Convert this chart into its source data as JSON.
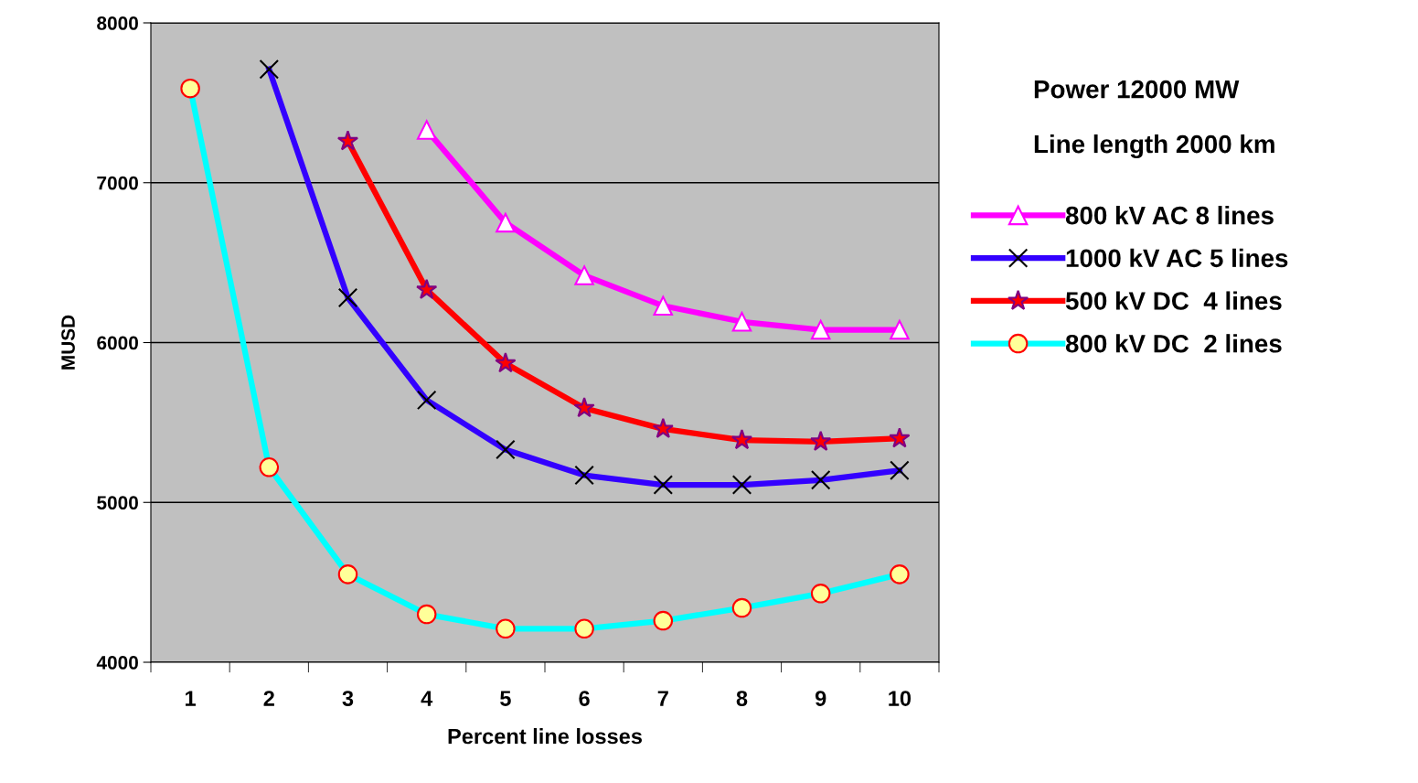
{
  "chart_data": {
    "type": "line",
    "xlabel": "Percent line losses",
    "ylabel": "MUSD",
    "categories": [
      "1",
      "2",
      "3",
      "4",
      "5",
      "6",
      "7",
      "8",
      "9",
      "10"
    ],
    "series": [
      {
        "name": "800 kV AC 8 lines",
        "color": "#ff00ff",
        "marker": "triangle",
        "values": [
          null,
          null,
          null,
          7330,
          6750,
          6420,
          6230,
          6130,
          6080,
          6080
        ]
      },
      {
        "name": "1000 kV AC 5 lines",
        "color": "#3300ff",
        "marker": "cross",
        "values": [
          null,
          7710,
          6280,
          5640,
          5330,
          5170,
          5110,
          5110,
          5140,
          5200
        ]
      },
      {
        "name": "500 kV DC  4 lines",
        "color": "#ff0000",
        "marker": "star",
        "values": [
          null,
          null,
          7260,
          6330,
          5870,
          5590,
          5460,
          5390,
          5380,
          5400
        ]
      },
      {
        "name": "800 kV DC  2 lines",
        "color": "#00ffff",
        "marker": "circle",
        "values": [
          7590,
          5220,
          4550,
          4300,
          4210,
          4210,
          4260,
          4340,
          4430,
          4550
        ]
      }
    ],
    "ylim": [
      4000,
      8000
    ],
    "yticks": [
      4000,
      5000,
      6000,
      7000,
      8000
    ],
    "grid": "y",
    "legend": "right",
    "annotations": [
      "Power 12000 MW",
      "Line length 2000 km"
    ]
  }
}
